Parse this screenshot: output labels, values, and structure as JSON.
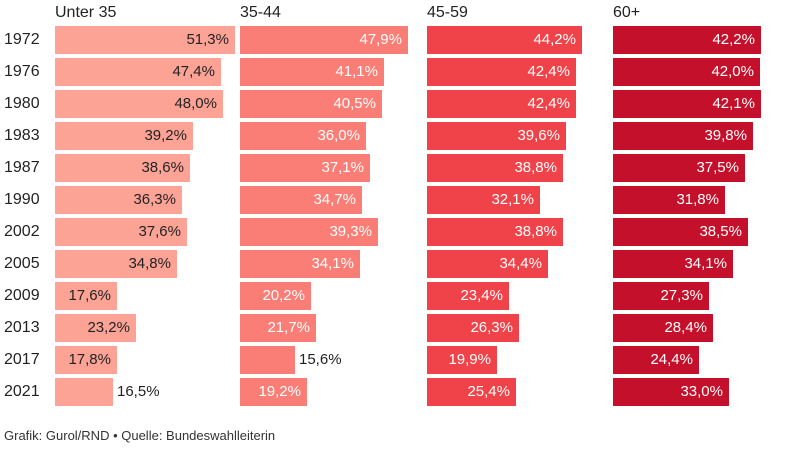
{
  "chart_data": {
    "type": "bar",
    "orientation": "horizontal",
    "layout": "small-multiples",
    "categories": [
      "1972",
      "1976",
      "1980",
      "1983",
      "1987",
      "1990",
      "2002",
      "2005",
      "2009",
      "2013",
      "2017",
      "2021"
    ],
    "series": [
      {
        "name": "Unter 35",
        "color": "#fca396",
        "values": [
          51.3,
          47.4,
          48.0,
          39.2,
          38.6,
          36.3,
          37.6,
          34.8,
          17.6,
          23.2,
          17.8,
          16.5
        ],
        "labels": [
          "51,3%",
          "47,4%",
          "48,0%",
          "39,2%",
          "38,6%",
          "36,3%",
          "37,6%",
          "34,8%",
          "17,6%",
          "23,2%",
          "17,8%",
          "16,5%"
        ]
      },
      {
        "name": "35-44",
        "color": "#fb7e76",
        "values": [
          47.9,
          41.1,
          40.5,
          36.0,
          37.1,
          34.7,
          39.3,
          34.1,
          20.2,
          21.7,
          15.6,
          19.2
        ],
        "labels": [
          "47,9%",
          "41,1%",
          "40,5%",
          "36,0%",
          "37,1%",
          "34,7%",
          "39,3%",
          "34,1%",
          "20,2%",
          "21,7%",
          "15,6%",
          "19,2%"
        ]
      },
      {
        "name": "45-59",
        "color": "#ef4249",
        "values": [
          44.2,
          42.4,
          42.4,
          39.6,
          38.8,
          32.1,
          38.8,
          34.4,
          23.4,
          26.3,
          19.9,
          25.4
        ],
        "labels": [
          "44,2%",
          "42,4%",
          "42,4%",
          "39,6%",
          "38,8%",
          "32,1%",
          "38,8%",
          "34,4%",
          "23,4%",
          "26,3%",
          "19,9%",
          "25,4%"
        ]
      },
      {
        "name": "60+",
        "color": "#c4102b",
        "values": [
          42.2,
          42.0,
          42.1,
          39.8,
          37.5,
          31.8,
          38.5,
          34.1,
          27.3,
          28.4,
          24.4,
          33.0
        ],
        "labels": [
          "42,2%",
          "42,0%",
          "42,1%",
          "39,8%",
          "37,5%",
          "31,8%",
          "38,5%",
          "34,1%",
          "27,3%",
          "28,4%",
          "24,4%",
          "33,0%"
        ]
      }
    ],
    "ylim": [
      0,
      51.3
    ],
    "grid": false,
    "legend": "none"
  },
  "footer": "Grafik: Gurol/RND • Quelle: Bundeswahlleiterin"
}
